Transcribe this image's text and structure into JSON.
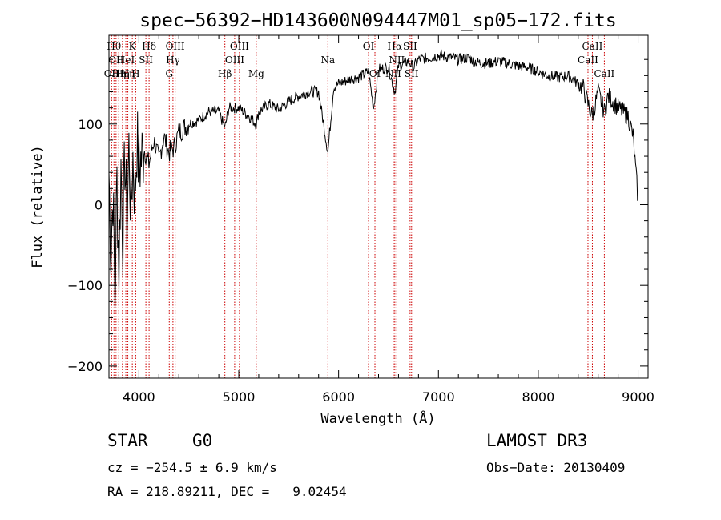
{
  "info": {
    "object_class": "STAR",
    "subclass": "G0",
    "survey": "LAMOST DR3",
    "cz": "cz = −254.5 ± 6.9 km/s",
    "obs_date": "Obs−Date: 20130409",
    "coords": "RA = 218.89211, DEC =   9.02454"
  },
  "chart_data": {
    "type": "line",
    "title": "spec−56392−HD143600N094447M01_sp05−172.fits",
    "xlabel": "Wavelength (Å)",
    "ylabel": "Flux (relative)",
    "xlim": [
      3700,
      9100
    ],
    "ylim": [
      -215,
      210
    ],
    "xticks": [
      4000,
      5000,
      6000,
      7000,
      8000,
      9000
    ],
    "yticks": [
      -200,
      -100,
      0,
      100
    ],
    "ytick_labels": [
      "−200",
      "−100",
      "0",
      "100"
    ],
    "grid": false,
    "line_color": "#000000",
    "marker_color": "#cc0000",
    "series": [
      {
        "x": [
          3700,
          3720,
          3740,
          3760,
          3780,
          3800,
          3820,
          3840,
          3860,
          3880,
          3900,
          3920,
          3940,
          3960,
          3980,
          4000,
          4050,
          4100,
          4150,
          4200,
          4250,
          4300,
          4350,
          4400,
          4450,
          4500,
          4600,
          4700,
          4800,
          4861,
          4900,
          5000,
          5100,
          5175,
          5200,
          5300,
          5400,
          5500,
          5600,
          5700,
          5800,
          5893,
          5950,
          6000,
          6100,
          6200,
          6300,
          6350,
          6400,
          6500,
          6563,
          6600,
          6700,
          6750,
          6800,
          6900,
          7000,
          7100,
          7200,
          7300,
          7400,
          7500,
          7600,
          7700,
          7800,
          7900,
          8000,
          8100,
          8200,
          8300,
          8400,
          8450,
          8498,
          8542,
          8600,
          8662,
          8700,
          8800,
          8900,
          8950,
          9000
        ],
        "y": [
          40,
          -60,
          20,
          -120,
          30,
          -80,
          50,
          -40,
          60,
          -20,
          70,
          -10,
          60,
          10,
          80,
          45,
          70,
          50,
          80,
          55,
          85,
          65,
          70,
          90,
          95,
          100,
          105,
          115,
          115,
          95,
          120,
          120,
          110,
          100,
          115,
          125,
          118,
          128,
          135,
          140,
          140,
          65,
          145,
          150,
          155,
          158,
          165,
          120,
          168,
          170,
          140,
          172,
          178,
          170,
          180,
          182,
          185,
          183,
          180,
          182,
          176,
          175,
          178,
          175,
          172,
          170,
          165,
          160,
          158,
          160,
          150,
          145,
          125,
          110,
          140,
          115,
          135,
          120,
          110,
          85,
          5
        ]
      }
    ],
    "lines": [
      {
        "wl": 3727,
        "label": "OII",
        "row": 3
      },
      {
        "wl": 3750,
        "label": "Hθ",
        "row": 1
      },
      {
        "wl": 3771,
        "label": "OII",
        "row": 2
      },
      {
        "wl": 3798,
        "label": "Hη",
        "row": 3
      },
      {
        "wl": 3835,
        "label": "Hη",
        "row": 3
      },
      {
        "wl": 3869,
        "label": "HeI",
        "row": 2
      },
      {
        "wl": 3889,
        "label": "Hη",
        "row": 3
      },
      {
        "wl": 3934,
        "label": "K",
        "row": 1
      },
      {
        "wl": 3968,
        "label": "H",
        "row": 3
      },
      {
        "wl": 4070,
        "label": "SII",
        "row": 2
      },
      {
        "wl": 4102,
        "label": "Hδ",
        "row": 1
      },
      {
        "wl": 4304,
        "label": "G",
        "row": 3
      },
      {
        "wl": 4341,
        "label": "Hγ",
        "row": 2
      },
      {
        "wl": 4363,
        "label": "OIII",
        "row": 1
      },
      {
        "wl": 4861,
        "label": "Hβ",
        "row": 3
      },
      {
        "wl": 4959,
        "label": "OIII",
        "row": 2
      },
      {
        "wl": 5007,
        "label": "OIII",
        "row": 1
      },
      {
        "wl": 5175,
        "label": "Mg",
        "row": 3
      },
      {
        "wl": 5893,
        "label": "Na",
        "row": 2
      },
      {
        "wl": 6300,
        "label": "OI",
        "row": 1
      },
      {
        "wl": 6364,
        "label": "OI",
        "row": 3
      },
      {
        "wl": 6548,
        "label": "NII",
        "row": 3
      },
      {
        "wl": 6563,
        "label": "Hα",
        "row": 1
      },
      {
        "wl": 6583,
        "label": "NII",
        "row": 2
      },
      {
        "wl": 6716,
        "label": "SII",
        "row": 1
      },
      {
        "wl": 6731,
        "label": "SII",
        "row": 3
      },
      {
        "wl": 8498,
        "label": "CaII",
        "row": 2
      },
      {
        "wl": 8542,
        "label": "CaII",
        "row": 1
      },
      {
        "wl": 8662,
        "label": "CaII",
        "row": 3
      }
    ]
  }
}
